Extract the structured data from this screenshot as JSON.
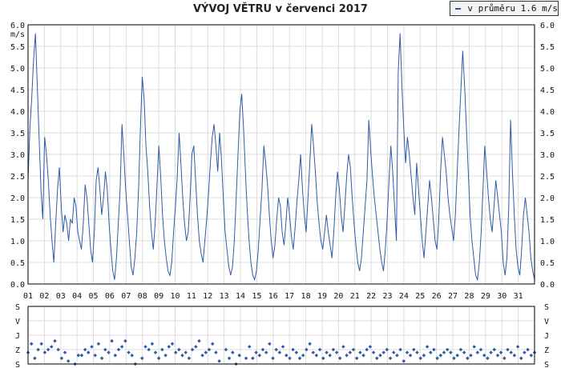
{
  "title": "VÝVOJ VĚTRU v červenci 2017",
  "legend": {
    "label": "v průměru 1.6 m/s",
    "color": "#2f5ba8"
  },
  "chart_data": [
    {
      "type": "line",
      "title": "VÝVOJ VĚTRU v červenci 2017",
      "ylabel": "m/s",
      "ylim": [
        0,
        6
      ],
      "y_ticks": [
        "0.0",
        "0.5",
        "1.0",
        "1.5",
        "2.0",
        "2.5",
        "3.0",
        "3.5",
        "4.0",
        "4.5",
        "5.0",
        "5.5",
        "6.0"
      ],
      "x_ticks": [
        "01",
        "02",
        "03",
        "04",
        "05",
        "06",
        "07",
        "08",
        "09",
        "10",
        "11",
        "12",
        "13",
        "14",
        "15",
        "16",
        "17",
        "18",
        "19",
        "20",
        "21",
        "22",
        "23",
        "24",
        "25",
        "26",
        "27",
        "28",
        "29",
        "30",
        "31"
      ],
      "xlim": [
        1,
        32
      ],
      "grid": true,
      "legend_position": "top-right",
      "series": [
        {
          "name": "v průměru 1.6 m/s",
          "color": "#2f5ba8",
          "values": [
            2.4,
            3.6,
            4.3,
            5.2,
            5.8,
            4.6,
            3.4,
            2.2,
            1.5,
            3.4,
            3.0,
            2.4,
            1.6,
            1.0,
            0.5,
            1.4,
            2.2,
            2.7,
            1.8,
            1.2,
            1.6,
            1.4,
            1.0,
            1.5,
            1.4,
            2.0,
            1.8,
            1.2,
            1.0,
            0.8,
            1.4,
            2.3,
            2.0,
            1.4,
            0.8,
            0.5,
            1.2,
            2.4,
            2.7,
            2.2,
            1.6,
            2.0,
            2.6,
            2.2,
            1.4,
            0.8,
            0.3,
            0.1,
            0.6,
            1.4,
            2.2,
            3.7,
            3.0,
            2.2,
            1.6,
            1.0,
            0.4,
            0.2,
            0.6,
            1.2,
            2.2,
            3.6,
            4.8,
            4.3,
            3.2,
            2.6,
            1.8,
            1.2,
            0.8,
            1.4,
            2.3,
            3.2,
            2.5,
            1.6,
            1.0,
            0.6,
            0.3,
            0.2,
            0.5,
            1.2,
            1.8,
            2.5,
            3.5,
            2.8,
            2.0,
            1.4,
            1.0,
            1.2,
            2.0,
            3.0,
            3.2,
            2.4,
            1.6,
            1.0,
            0.7,
            0.5,
            1.0,
            1.5,
            2.1,
            2.8,
            3.4,
            3.7,
            3.2,
            2.6,
            3.5,
            2.9,
            2.0,
            1.2,
            0.8,
            0.4,
            0.2,
            0.4,
            1.0,
            2.0,
            3.0,
            4.0,
            4.4,
            3.6,
            2.6,
            1.7,
            1.0,
            0.5,
            0.2,
            0.1,
            0.3,
            0.8,
            1.5,
            2.2,
            3.2,
            2.8,
            2.3,
            1.6,
            1.0,
            0.6,
            0.9,
            1.5,
            2.0,
            1.8,
            1.2,
            0.9,
            1.4,
            2.0,
            1.6,
            1.1,
            0.8,
            1.3,
            1.9,
            2.4,
            3.0,
            2.2,
            1.6,
            1.2,
            2.0,
            2.8,
            3.7,
            3.2,
            2.6,
            1.9,
            1.4,
            1.0,
            0.8,
            1.2,
            1.6,
            1.2,
            0.9,
            0.6,
            1.2,
            2.0,
            2.6,
            2.2,
            1.6,
            1.2,
            1.8,
            2.5,
            3.0,
            2.7,
            2.0,
            1.4,
            0.9,
            0.5,
            0.3,
            0.6,
            1.2,
            1.8,
            2.4,
            3.8,
            3.1,
            2.5,
            2.0,
            1.6,
            1.2,
            0.8,
            0.5,
            0.3,
            0.8,
            1.5,
            2.4,
            3.2,
            2.6,
            1.8,
            1.0,
            4.9,
            5.8,
            4.6,
            3.6,
            2.8,
            3.4,
            3.0,
            2.5,
            2.0,
            1.6,
            2.8,
            2.2,
            1.6,
            1.0,
            0.6,
            1.2,
            1.8,
            2.4,
            2.0,
            1.5,
            1.0,
            0.8,
            1.5,
            2.6,
            3.4,
            3.0,
            2.6,
            2.0,
            1.6,
            1.3,
            1.0,
            1.6,
            2.6,
            3.6,
            4.5,
            5.4,
            4.6,
            3.6,
            2.6,
            1.6,
            1.0,
            0.6,
            0.2,
            0.1,
            0.5,
            1.2,
            2.2,
            3.2,
            2.6,
            2.0,
            1.5,
            1.2,
            1.8,
            2.4,
            2.0,
            1.6,
            1.2,
            0.5,
            0.2,
            0.6,
            1.8,
            3.8,
            2.6,
            1.6,
            0.8,
            0.4,
            0.2,
            0.8,
            1.6,
            2.0,
            1.6,
            1.2,
            0.6,
            0.3,
            0.1
          ]
        }
      ]
    },
    {
      "type": "scatter",
      "y_ticks": [
        "S",
        "V",
        "J",
        "Z",
        "S"
      ],
      "xlim": [
        1,
        32
      ],
      "grid": true,
      "series": [
        {
          "color": "#2f5ba8",
          "values": [
            3.2,
            2.6,
            3.6,
            3.0,
            2.6,
            3.2,
            3.0,
            2.8,
            2.4,
            3.0,
            3.6,
            3.2,
            3.8,
            4.4,
            4.0,
            3.4,
            3.4,
            3.0,
            3.2,
            2.8,
            3.4,
            2.6,
            3.6,
            3.0,
            3.2,
            2.4,
            3.4,
            3.0,
            2.8,
            2.4,
            3.2,
            3.4,
            4.0,
            4.6,
            3.6,
            2.8,
            3.0,
            2.6,
            3.2,
            3.6,
            3.0,
            3.4,
            2.8,
            2.6,
            3.2,
            3.0,
            3.4,
            3.2,
            3.6,
            3.0,
            2.8,
            2.4,
            3.4,
            3.2,
            3.0,
            2.6,
            3.2,
            3.8,
            4.4,
            3.0,
            3.6,
            3.2,
            4.0,
            3.4,
            4.8,
            3.6,
            2.8,
            3.6,
            3.2,
            3.4,
            3.0,
            3.2,
            2.6,
            3.6,
            3.0,
            3.2,
            2.8,
            3.4,
            3.6,
            3.0,
            3.2,
            3.6,
            3.4,
            3.0,
            2.6,
            3.2,
            3.4,
            3.0,
            3.6,
            3.2,
            3.4,
            3.0,
            3.2,
            3.6,
            2.8,
            3.4,
            3.2,
            3.0,
            3.6,
            3.2,
            3.4,
            3.0,
            2.8,
            3.2,
            3.6,
            3.4,
            3.2,
            3.0,
            3.6,
            3.2,
            3.4,
            3.0,
            3.8,
            3.2,
            3.4,
            3.0,
            3.2,
            3.6,
            3.4,
            2.8,
            3.2,
            3.0,
            3.6,
            3.4,
            3.2,
            3.0,
            3.2,
            3.6,
            3.4,
            3.0,
            3.2,
            3.6,
            3.4,
            2.8,
            3.2,
            3.0,
            3.4,
            3.6,
            3.2,
            3.0,
            3.4,
            3.2,
            3.6,
            3.0,
            3.2,
            3.4,
            2.8,
            3.6,
            3.2,
            3.0,
            3.4,
            3.2
          ]
        }
      ]
    }
  ]
}
